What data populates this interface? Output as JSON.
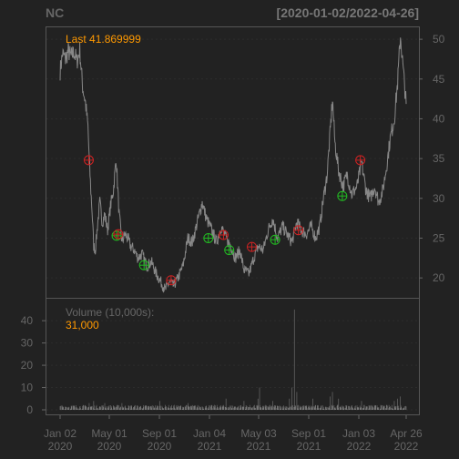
{
  "header": {
    "symbol": "NC",
    "date_range": "[2020-01-02/2022-04-26]"
  },
  "price_panel": {
    "last_label": "Last 41.869999",
    "y_ticks": [
      "20",
      "25",
      "30",
      "35",
      "40",
      "45",
      "50"
    ]
  },
  "volume_panel": {
    "label": "Volume (10,000s):",
    "value": "31,000",
    "y_ticks": [
      "0",
      "10",
      "20",
      "30",
      "40"
    ]
  },
  "x_axis": {
    "ticks": [
      {
        "line1": "Jan 02",
        "line2": "2020"
      },
      {
        "line1": "May 01",
        "line2": "2020"
      },
      {
        "line1": "Sep 01",
        "line2": "2020"
      },
      {
        "line1": "Jan 04",
        "line2": "2021"
      },
      {
        "line1": "May 03",
        "line2": "2021"
      },
      {
        "line1": "Sep 01",
        "line2": "2021"
      },
      {
        "line1": "Jan 03",
        "line2": "2022"
      },
      {
        "line1": "Apr 26",
        "line2": "2022"
      }
    ]
  },
  "colors": {
    "background": "#222222",
    "price_line": "#888888",
    "volume_bars": "#777777",
    "buy_marker": "#22bb22",
    "sell_marker": "#cc2222",
    "last_value": "#ff9900",
    "frame": "#555555",
    "text": "#666666"
  },
  "chart_data": {
    "type": "line",
    "x_start": "2020-01-02",
    "x_end": "2022-04-26",
    "price_ylim": [
      17.5,
      51.5
    ],
    "volume_ylim": [
      0,
      47
    ],
    "price_series": [
      [
        "2020-01-02",
        46.0
      ],
      [
        "2020-01-08",
        48.2
      ],
      [
        "2020-01-15",
        47.5
      ],
      [
        "2020-01-22",
        48.5
      ],
      [
        "2020-01-29",
        47.8
      ],
      [
        "2020-02-05",
        48.4
      ],
      [
        "2020-02-12",
        47.2
      ],
      [
        "2020-02-19",
        48.6
      ],
      [
        "2020-02-26",
        44.0
      ],
      [
        "2020-03-04",
        42.0
      ],
      [
        "2020-03-10",
        39.0
      ],
      [
        "2020-03-13",
        35.0
      ],
      [
        "2020-03-17",
        31.0
      ],
      [
        "2020-03-20",
        28.5
      ],
      [
        "2020-03-24",
        24.0
      ],
      [
        "2020-03-28",
        23.5
      ],
      [
        "2020-04-02",
        26.5
      ],
      [
        "2020-04-08",
        29.5
      ],
      [
        "2020-04-14",
        27.0
      ],
      [
        "2020-04-20",
        28.0
      ],
      [
        "2020-04-27",
        26.0
      ],
      [
        "2020-05-04",
        29.0
      ],
      [
        "2020-05-11",
        31.0
      ],
      [
        "2020-05-18",
        35.0
      ],
      [
        "2020-05-25",
        28.0
      ],
      [
        "2020-06-01",
        24.5
      ],
      [
        "2020-06-08",
        25.5
      ],
      [
        "2020-06-15",
        25.0
      ],
      [
        "2020-06-22",
        24.0
      ],
      [
        "2020-07-01",
        23.5
      ],
      [
        "2020-07-10",
        22.5
      ],
      [
        "2020-07-20",
        23.0
      ],
      [
        "2020-08-01",
        21.5
      ],
      [
        "2020-08-12",
        22.0
      ],
      [
        "2020-08-24",
        20.5
      ],
      [
        "2020-09-04",
        19.5
      ],
      [
        "2020-09-15",
        18.5
      ],
      [
        "2020-09-25",
        19.5
      ],
      [
        "2020-10-05",
        19.0
      ],
      [
        "2020-10-16",
        20.0
      ],
      [
        "2020-10-28",
        21.5
      ],
      [
        "2020-11-09",
        25.0
      ],
      [
        "2020-11-20",
        24.5
      ],
      [
        "2020-12-02",
        27.0
      ],
      [
        "2020-12-14",
        29.5
      ],
      [
        "2020-12-24",
        27.5
      ],
      [
        "2021-01-06",
        26.0
      ],
      [
        "2021-01-18",
        24.5
      ],
      [
        "2021-01-29",
        26.5
      ],
      [
        "2021-02-10",
        25.0
      ],
      [
        "2021-02-22",
        24.0
      ],
      [
        "2021-03-05",
        22.5
      ],
      [
        "2021-03-16",
        23.5
      ],
      [
        "2021-03-26",
        21.0
      ],
      [
        "2021-04-07",
        20.5
      ],
      [
        "2021-04-19",
        22.5
      ],
      [
        "2021-04-30",
        24.0
      ],
      [
        "2021-05-12",
        23.5
      ],
      [
        "2021-05-24",
        26.0
      ],
      [
        "2021-06-04",
        27.5
      ],
      [
        "2021-06-16",
        25.0
      ],
      [
        "2021-06-28",
        26.5
      ],
      [
        "2021-07-09",
        25.5
      ],
      [
        "2021-07-21",
        24.5
      ],
      [
        "2021-08-02",
        27.0
      ],
      [
        "2021-08-13",
        26.0
      ],
      [
        "2021-08-25",
        25.5
      ],
      [
        "2021-09-06",
        26.5
      ],
      [
        "2021-09-17",
        25.0
      ],
      [
        "2021-09-27",
        26.5
      ],
      [
        "2021-10-06",
        30.0
      ],
      [
        "2021-10-15",
        33.0
      ],
      [
        "2021-10-22",
        38.0
      ],
      [
        "2021-10-28",
        42.5
      ],
      [
        "2021-11-03",
        37.0
      ],
      [
        "2021-11-12",
        33.5
      ],
      [
        "2021-11-23",
        31.5
      ],
      [
        "2021-12-03",
        33.0
      ],
      [
        "2021-12-14",
        30.5
      ],
      [
        "2021-12-27",
        31.5
      ],
      [
        "2022-01-07",
        34.5
      ],
      [
        "2022-01-18",
        31.0
      ],
      [
        "2022-01-28",
        30.0
      ],
      [
        "2022-02-08",
        31.5
      ],
      [
        "2022-02-18",
        29.5
      ],
      [
        "2022-02-28",
        31.0
      ],
      [
        "2022-03-09",
        34.0
      ],
      [
        "2022-03-18",
        37.5
      ],
      [
        "2022-03-28",
        40.0
      ],
      [
        "2022-04-05",
        44.5
      ],
      [
        "2022-04-12",
        50.5
      ],
      [
        "2022-04-19",
        46.0
      ],
      [
        "2022-04-26",
        41.87
      ]
    ],
    "volume_spikes": [
      [
        "2020-03-13",
        3
      ],
      [
        "2020-03-24",
        4
      ],
      [
        "2020-04-20",
        3
      ],
      [
        "2020-06-01",
        3
      ],
      [
        "2020-09-01",
        4
      ],
      [
        "2020-11-09",
        3
      ],
      [
        "2021-02-10",
        5
      ],
      [
        "2021-03-26",
        4
      ],
      [
        "2021-04-29",
        5
      ],
      [
        "2021-05-03",
        10
      ],
      [
        "2021-06-04",
        4
      ],
      [
        "2021-07-15",
        5
      ],
      [
        "2021-07-21",
        10
      ],
      [
        "2021-07-27",
        45
      ],
      [
        "2021-08-02",
        8
      ],
      [
        "2021-09-10",
        5
      ],
      [
        "2021-10-22",
        6
      ],
      [
        "2021-10-28",
        8
      ],
      [
        "2021-11-12",
        5
      ],
      [
        "2022-01-07",
        4
      ],
      [
        "2022-03-28",
        4
      ],
      [
        "2022-04-05",
        5
      ],
      [
        "2022-04-12",
        6
      ]
    ],
    "markers": [
      {
        "date": "2020-03-12",
        "price": 34.8,
        "type": "sell"
      },
      {
        "date": "2020-05-19",
        "price": 25.3,
        "type": "buy"
      },
      {
        "date": "2020-05-23",
        "price": 25.5,
        "type": "sell"
      },
      {
        "date": "2020-07-25",
        "price": 21.6,
        "type": "buy"
      },
      {
        "date": "2020-09-29",
        "price": 19.7,
        "type": "sell"
      },
      {
        "date": "2020-12-29",
        "price": 25.0,
        "type": "buy"
      },
      {
        "date": "2021-02-04",
        "price": 25.4,
        "type": "sell"
      },
      {
        "date": "2021-02-18",
        "price": 23.5,
        "type": "buy"
      },
      {
        "date": "2021-04-14",
        "price": 23.9,
        "type": "sell"
      },
      {
        "date": "2021-06-10",
        "price": 24.8,
        "type": "buy"
      },
      {
        "date": "2021-08-06",
        "price": 26.0,
        "type": "sell"
      },
      {
        "date": "2021-11-21",
        "price": 30.3,
        "type": "buy"
      },
      {
        "date": "2022-01-04",
        "price": 34.8,
        "type": "sell"
      }
    ]
  }
}
